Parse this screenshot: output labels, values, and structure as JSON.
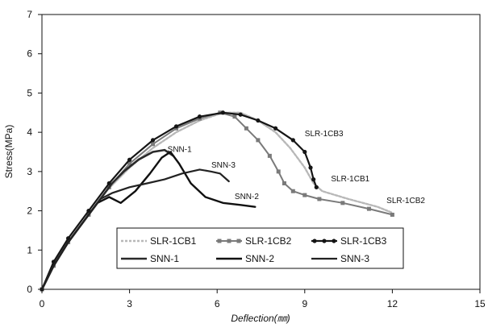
{
  "chart_data": {
    "type": "line",
    "xlabel": "Deflection(㎜)",
    "ylabel": "Stress(MPa)",
    "xlim": [
      0,
      15
    ],
    "ylim": [
      0,
      7
    ],
    "xticks": [
      "0",
      "3",
      "6",
      "9",
      "12",
      "15"
    ],
    "yticks": [
      "0",
      "1",
      "2",
      "3",
      "4",
      "5",
      "6",
      "7"
    ],
    "grid": false,
    "legend_position": "bottom-center",
    "series": [
      {
        "name": "SLR-1CB1",
        "color": "#b8b8b8",
        "width": 2.4,
        "dash": "3,2",
        "marker": "none",
        "x": [
          0,
          0.3,
          0.8,
          1.5,
          2.2,
          3.0,
          3.8,
          4.6,
          5.4,
          6.2,
          6.8,
          7.4,
          8.0,
          8.5,
          9.0,
          9.3,
          9.6,
          10.5,
          11.5,
          12.0
        ],
        "y": [
          0,
          0.5,
          1.1,
          1.8,
          2.5,
          3.1,
          3.6,
          4.0,
          4.3,
          4.5,
          4.5,
          4.3,
          4.0,
          3.6,
          3.1,
          2.7,
          2.5,
          2.3,
          2.1,
          1.95
        ]
      },
      {
        "name": "SLR-1CB2",
        "color": "#7a7a7a",
        "width": 2,
        "dash": "",
        "marker": "square",
        "x": [
          0,
          0.4,
          0.9,
          1.6,
          2.3,
          3.0,
          3.8,
          4.6,
          5.4,
          6.1,
          6.6,
          7.0,
          7.4,
          7.8,
          8.1,
          8.3,
          8.6,
          9.0,
          9.5,
          10.3,
          11.2,
          12.0
        ],
        "y": [
          0,
          0.6,
          1.2,
          1.9,
          2.6,
          3.2,
          3.7,
          4.1,
          4.35,
          4.5,
          4.4,
          4.1,
          3.8,
          3.4,
          3.0,
          2.7,
          2.5,
          2.4,
          2.3,
          2.2,
          2.05,
          1.9
        ]
      },
      {
        "name": "SLR-1CB3",
        "color": "#151515",
        "width": 2.2,
        "dash": "",
        "marker": "circle",
        "x": [
          0,
          0.4,
          0.9,
          1.6,
          2.3,
          3.0,
          3.8,
          4.6,
          5.4,
          6.2,
          6.8,
          7.4,
          8.0,
          8.6,
          9.0,
          9.2,
          9.3,
          9.4
        ],
        "y": [
          0,
          0.7,
          1.3,
          2.0,
          2.7,
          3.3,
          3.8,
          4.15,
          4.4,
          4.5,
          4.45,
          4.3,
          4.1,
          3.8,
          3.5,
          3.1,
          2.8,
          2.6
        ]
      },
      {
        "name": "SNN-1",
        "color": "#2a2a2a",
        "width": 2.6,
        "dash": "",
        "marker": "none",
        "x": [
          0,
          0.4,
          0.9,
          1.6,
          2.1,
          2.4,
          2.8,
          3.3,
          3.8,
          4.2,
          4.5
        ],
        "y": [
          0,
          0.6,
          1.2,
          1.9,
          2.4,
          2.7,
          3.0,
          3.3,
          3.5,
          3.55,
          3.4
        ]
      },
      {
        "name": "SNN-2",
        "color": "#111111",
        "width": 2.4,
        "dash": "",
        "marker": "none",
        "x": [
          0,
          0.4,
          0.9,
          1.5,
          1.9,
          2.3,
          2.7,
          3.2,
          3.7,
          4.1,
          4.4,
          4.7,
          5.1,
          5.6,
          6.2,
          6.8,
          7.3
        ],
        "y": [
          0,
          0.6,
          1.2,
          1.8,
          2.2,
          2.35,
          2.2,
          2.5,
          2.95,
          3.35,
          3.5,
          3.2,
          2.7,
          2.35,
          2.2,
          2.15,
          2.1
        ]
      },
      {
        "name": "SNN-3",
        "color": "#222222",
        "width": 2.2,
        "dash": "",
        "marker": "none",
        "x": [
          0,
          0.4,
          0.9,
          1.5,
          2.0,
          2.4,
          3.0,
          3.6,
          4.2,
          4.8,
          5.4,
          5.8,
          6.1,
          6.4
        ],
        "y": [
          0,
          0.6,
          1.2,
          1.8,
          2.3,
          2.45,
          2.6,
          2.7,
          2.8,
          2.95,
          3.05,
          3.0,
          2.95,
          2.75
        ]
      }
    ],
    "annotations": [
      {
        "text": "SLR-1CB3",
        "x": 9.0,
        "y": 3.9
      },
      {
        "text": "SLR-1CB1",
        "x": 9.9,
        "y": 2.75
      },
      {
        "text": "SLR-1CB2",
        "x": 11.8,
        "y": 2.2
      },
      {
        "text": "SNN-1",
        "x": 4.3,
        "y": 3.5
      },
      {
        "text": "SNN-3",
        "x": 5.8,
        "y": 3.1
      },
      {
        "text": "SNN-2",
        "x": 6.6,
        "y": 2.3
      }
    ]
  }
}
